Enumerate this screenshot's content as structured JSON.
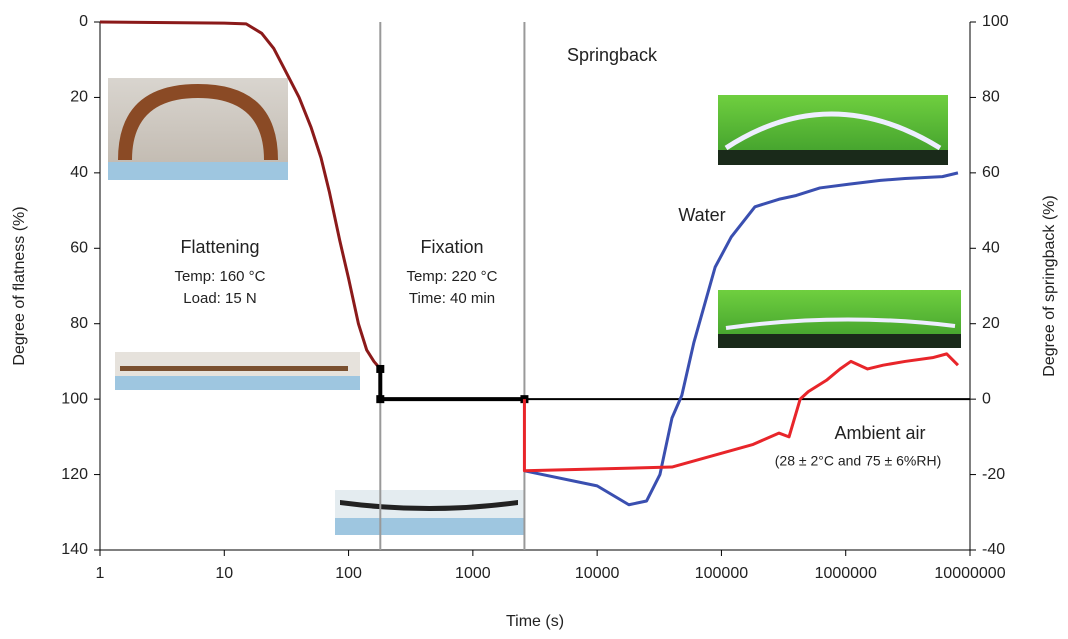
{
  "chart_data": {
    "type": "line",
    "x_label": "Time (s)",
    "y_label": "Degree of flatness (%)",
    "y2_label": "Degree of springback (%)",
    "x_log": true,
    "xlim": [
      1,
      10000000
    ],
    "xticks": [
      1,
      10,
      100,
      1000,
      10000,
      100000,
      1000000,
      10000000
    ],
    "ylim": [
      0,
      140
    ],
    "y_inverted": true,
    "yticks": [
      0,
      20,
      40,
      60,
      80,
      100,
      120,
      140
    ],
    "y2lim": [
      -40,
      100
    ],
    "y2ticks": [
      -40,
      -20,
      0,
      20,
      40,
      60,
      80,
      100
    ],
    "series": [
      {
        "name": "Flattening",
        "color": "#8b1a1a",
        "axis": "y",
        "x": [
          1,
          10,
          15,
          20,
          25,
          30,
          40,
          50,
          60,
          70,
          85,
          100,
          120,
          140,
          160,
          180
        ],
        "values": [
          0,
          0.3,
          0.5,
          3,
          7,
          12,
          20,
          28,
          36,
          45,
          58,
          68,
          80,
          87,
          90,
          92
        ]
      },
      {
        "name": "Fixation",
        "color": "#000000",
        "axis": "y",
        "x": [
          180,
          180,
          2600
        ],
        "values": [
          92,
          100,
          100
        ]
      },
      {
        "name": "Water",
        "color": "#3a4fb0",
        "axis": "y2",
        "x": [
          2600,
          10000,
          18000,
          25000,
          32000,
          40000,
          48000,
          60000,
          89000,
          120000,
          186000,
          290000,
          400000,
          620000,
          1070000,
          1900000,
          3000000,
          6000000,
          8000000
        ],
        "values": [
          -19,
          -23,
          -28,
          -27,
          -20,
          -5,
          1,
          15,
          35,
          43,
          51,
          53,
          54,
          56,
          57,
          58,
          58.5,
          59,
          60
        ]
      },
      {
        "name": "Ambient air",
        "color": "#e8252a",
        "axis": "y2",
        "x": [
          2600,
          2600,
          40000,
          180000,
          290000,
          350000,
          430000,
          500000,
          700000,
          900000,
          1100000,
          1500000,
          2000000,
          3000000,
          5000000,
          6500000,
          8000000
        ],
        "values": [
          0,
          -19,
          -18,
          -12,
          -9,
          -10,
          0,
          2,
          5,
          8,
          10,
          8,
          9,
          10,
          11,
          12,
          9
        ]
      }
    ],
    "annotations": [
      "Temp: 160 °C",
      "Load: 15 N",
      "Temp: 220 °C",
      "Time: 40 min",
      "Springback",
      "(28 ± 2°C and 75 ± 6%RH)"
    ]
  }
}
